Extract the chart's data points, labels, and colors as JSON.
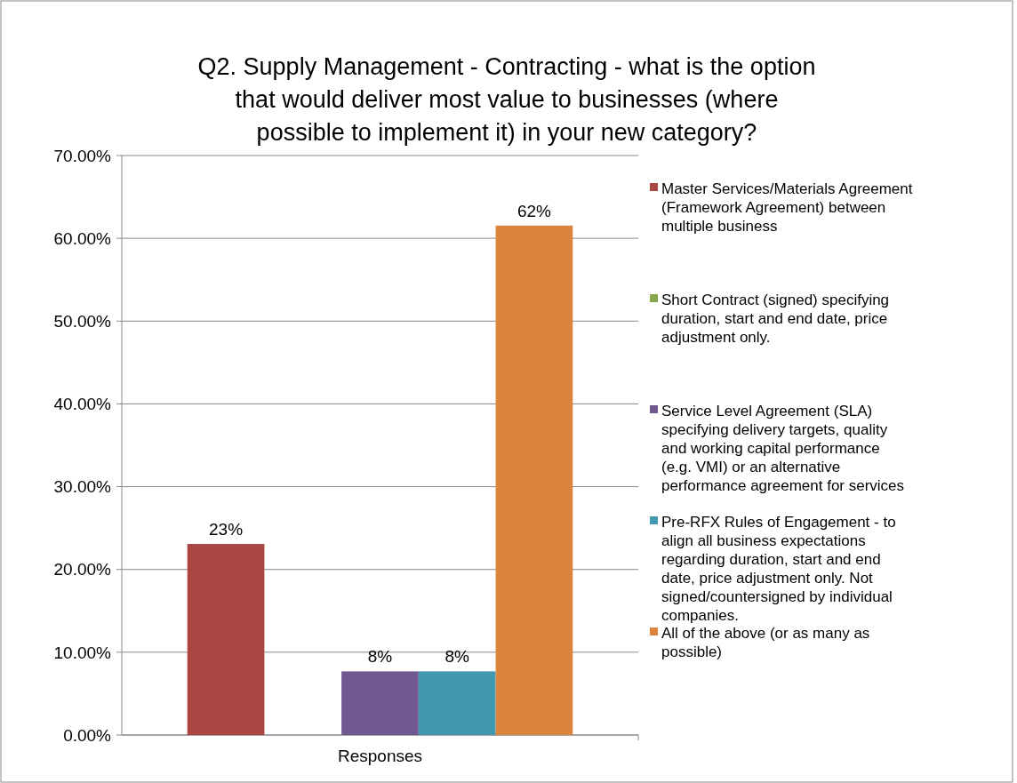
{
  "chart_data": {
    "type": "bar",
    "title": "Q2. Supply Management - Contracting - what is the option that would deliver most value to businesses (where possible to implement it) in your new category?",
    "categories": [
      "Responses"
    ],
    "series": [
      {
        "name": "Master Services/Materials Agreement (Framework Agreement) between multiple business",
        "color": "#aa4643",
        "values": [
          23.08
        ],
        "value_labels": [
          "23%"
        ]
      },
      {
        "name": "Short Contract (signed) specifying duration, start and end date, price adjustment only.",
        "color": "#89a54e",
        "values": [
          0
        ],
        "value_labels": [
          null
        ]
      },
      {
        "name": "Service Level Agreement (SLA) specifying delivery targets, quality and working capital performance (e.g. VMI) or an alternative performance agreement for services",
        "color": "#71588f",
        "values": [
          7.69
        ],
        "value_labels": [
          "8%"
        ]
      },
      {
        "name": "Pre-RFX Rules of Engagement - to align all business expectations regarding duration, start and end date, price adjustment only. Not signed/countersigned by individual companies.",
        "color": "#4198af",
        "values": [
          7.69
        ],
        "value_labels": [
          "8%"
        ]
      },
      {
        "name": "All of the above (or as many as possible)",
        "color": "#db843d",
        "values": [
          61.54
        ],
        "value_labels": [
          "62%"
        ]
      }
    ],
    "ylim": [
      0,
      70
    ],
    "yticks": [
      {
        "value": 0,
        "label": "0.00%"
      },
      {
        "value": 10,
        "label": "10.00%"
      },
      {
        "value": 20,
        "label": "20.00%"
      },
      {
        "value": 30,
        "label": "30.00%"
      },
      {
        "value": 40,
        "label": "40.00%"
      },
      {
        "value": 50,
        "label": "50.00%"
      },
      {
        "value": 60,
        "label": "60.00%"
      },
      {
        "value": 70,
        "label": "70.00%"
      }
    ],
    "grid": "y",
    "legend": "right"
  }
}
